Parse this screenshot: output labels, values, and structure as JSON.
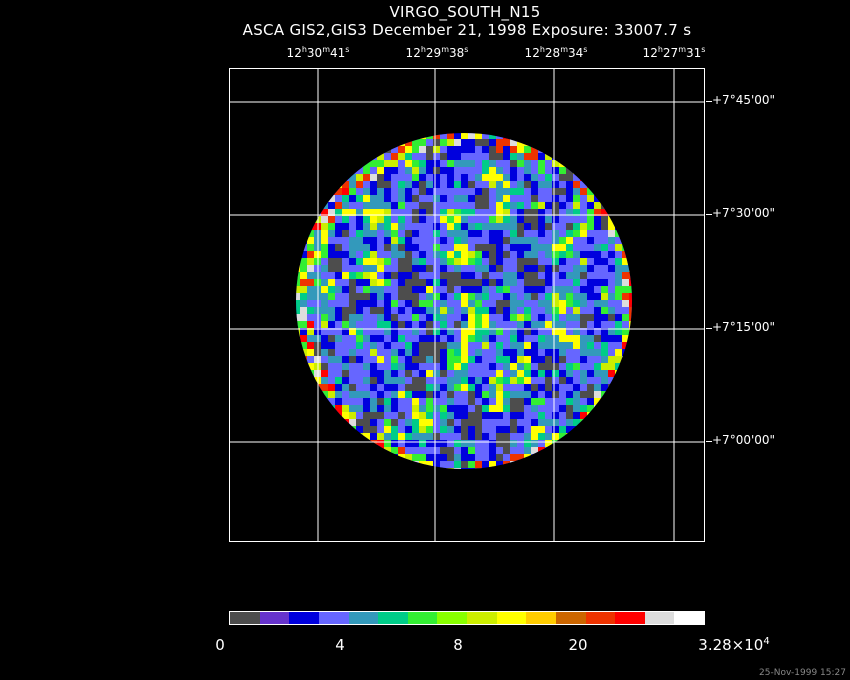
{
  "header": {
    "object": "VIRGO_SOUTH_N15",
    "subtitle": "ASCA GIS2,GIS3 December 21, 1998 Exposure: 33007.7 s"
  },
  "axes": {
    "ra_ticks": [
      {
        "h": "12",
        "hu": "h",
        "m": "30",
        "mu": "m",
        "s": "41",
        "su": "s"
      },
      {
        "h": "12",
        "hu": "h",
        "m": "29",
        "mu": "m",
        "s": "38",
        "su": "s"
      },
      {
        "h": "12",
        "hu": "h",
        "m": "28",
        "mu": "m",
        "s": "34",
        "su": "s"
      },
      {
        "h": "12",
        "hu": "h",
        "m": "27",
        "mu": "m",
        "s": "31",
        "su": "s"
      }
    ],
    "dec_ticks": [
      "+7°45'00\"",
      "+7°30'00\"",
      "+7°15'00\"",
      "+7°00'00\""
    ]
  },
  "colorbar": {
    "colors": [
      "#4d4d4d",
      "#6633cc",
      "#0000dd",
      "#6666ff",
      "#3399bb",
      "#00cc88",
      "#33ee33",
      "#88ff00",
      "#ccee00",
      "#ffff00",
      "#ffcc00",
      "#cc6600",
      "#ee3300",
      "#ff0000",
      "#dddddd",
      "#ffffff"
    ],
    "labels": {
      "l0": "0",
      "l1": "4",
      "l2": "8",
      "l3": "20",
      "max_mantissa": "3.28×10",
      "max_exp": "4"
    }
  },
  "stamp": "25-Nov-1999 15:27"
}
